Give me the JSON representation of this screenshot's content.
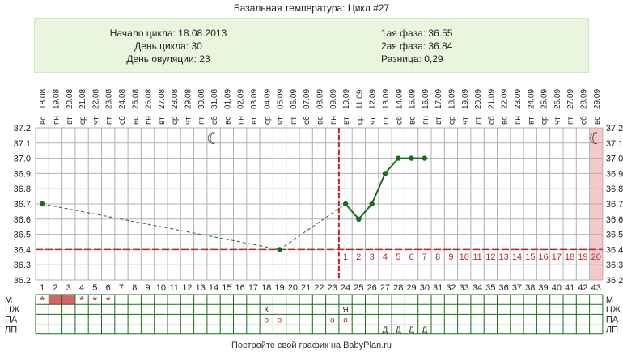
{
  "header": {
    "title": "Базальная температура: Цикл #27",
    "cycle_start": "Начало цикла: 18.08.2013",
    "cycle_day": "День цикла: 30",
    "ovulation_day": "День овуляции: 23",
    "phase1": "1ая фаза: 36.55",
    "phase2": "2ая фаза: 36.84",
    "difference": "Разница: 0,29"
  },
  "footer": "Постройте свой график на BabyPlan.ru",
  "colors": {
    "line": "#1a6b1a",
    "coverline": "#c82020",
    "ovulation": "#c82020",
    "menstruation": "#d9636b",
    "forecast": "#f7c8c8",
    "grid": "#b0b0b0",
    "info_bg": "#eaf5dd"
  },
  "chart_data": {
    "type": "line",
    "title": "Базальная температура: Цикл #27",
    "x": [
      1,
      2,
      3,
      4,
      5,
      6,
      7,
      8,
      9,
      10,
      11,
      12,
      13,
      14,
      15,
      16,
      17,
      18,
      19,
      20,
      21,
      22,
      23,
      24,
      25,
      26,
      27,
      28,
      29,
      30,
      31,
      32,
      33,
      34,
      35,
      36,
      37,
      38,
      39,
      40,
      41,
      42,
      43
    ],
    "dates": [
      "18.08",
      "19.08",
      "20.08",
      "21.08",
      "22.08",
      "23.08",
      "24.08",
      "25.08",
      "26.08",
      "27.08",
      "28.08",
      "29.08",
      "30.08",
      "31.08",
      "01.09",
      "02.09",
      "03.09",
      "04.09",
      "05.09",
      "06.09",
      "07.09",
      "08.09",
      "09.09",
      "10.09",
      "11.09",
      "12.09",
      "13.09",
      "14.09",
      "15.09",
      "16.09",
      "17.09",
      "18.09",
      "19.09",
      "20.09",
      "21.09",
      "22.09",
      "23.09",
      "24.09",
      "25.09",
      "26.09",
      "27.09",
      "28.09",
      "29.09"
    ],
    "weekdays": [
      "вс",
      "пн",
      "вт",
      "ср",
      "чт",
      "пт",
      "сб",
      "вс",
      "пн",
      "вт",
      "ср",
      "чт",
      "пт",
      "сб",
      "вс",
      "пн",
      "вт",
      "ср",
      "чт",
      "пт",
      "сб",
      "вс",
      "пн",
      "вт",
      "ср",
      "чт",
      "пт",
      "сб",
      "вс",
      "пн",
      "вт",
      "ср",
      "чт",
      "пт",
      "сб",
      "вс",
      "пн",
      "вт",
      "ср",
      "чт",
      "пт",
      "сб",
      "вс"
    ],
    "series": [
      {
        "points": [
          [
            1,
            36.7
          ],
          [
            19,
            36.4
          ],
          [
            24,
            36.7
          ],
          [
            25,
            36.6
          ],
          [
            26,
            36.7
          ],
          [
            27,
            36.9
          ],
          [
            28,
            37.0
          ],
          [
            29,
            37.0
          ],
          [
            30,
            37.0
          ]
        ]
      }
    ],
    "interpolated_segments": [
      [
        1,
        19
      ],
      [
        19,
        24
      ]
    ],
    "coverline": 36.4,
    "ovulation_day": 23,
    "luteal_days": [
      "1",
      "2",
      "3",
      "4",
      "5",
      "6",
      "7",
      "8",
      "9",
      "10",
      "11",
      "12",
      "13",
      "14",
      "15",
      "16",
      "17",
      "18",
      "19",
      "20"
    ],
    "forecast_day": 43,
    "moon_days": [
      14,
      43
    ],
    "ylim": [
      36.2,
      37.2
    ],
    "yticks": [
      "36.2",
      "36.3",
      "36.4",
      "36.5",
      "36.6",
      "36.7",
      "36.8",
      "36.9",
      "37.0",
      "37.1",
      "37.2"
    ],
    "grid": true,
    "rows": {
      "labels": [
        "М",
        "ЦЖ",
        "ПА",
        "ЛП"
      ],
      "М": {
        "filled": [
          2,
          3
        ],
        "marks": [
          [
            1,
            "*"
          ],
          [
            4,
            "*"
          ],
          [
            5,
            "*"
          ],
          [
            6,
            "*"
          ]
        ]
      },
      "ЦЖ": {
        "marks": [
          [
            18,
            "К"
          ],
          [
            24,
            "Я"
          ]
        ]
      },
      "ПА": {
        "marks": [
          [
            18,
            "o"
          ],
          [
            19,
            "o"
          ],
          [
            23,
            "o"
          ],
          [
            24,
            "o"
          ]
        ]
      },
      "ЛП": {
        "marks": [
          [
            27,
            "Д"
          ],
          [
            28,
            "Д"
          ],
          [
            29,
            "Д"
          ],
          [
            30,
            "Д"
          ]
        ]
      }
    }
  }
}
